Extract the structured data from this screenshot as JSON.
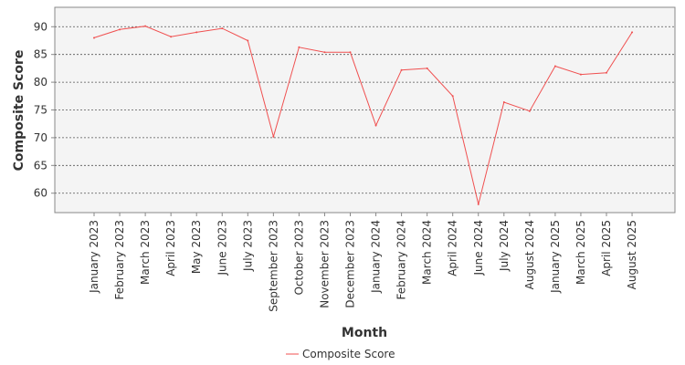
{
  "chart_data": {
    "type": "line",
    "title": "",
    "xlabel": "Month",
    "ylabel": "Composite Score",
    "categories": [
      "January 2023",
      "February 2023",
      "March 2023",
      "April 2023",
      "May 2023",
      "June 2023",
      "July 2023",
      "September 2023",
      "October 2023",
      "November 2023",
      "December 2023",
      "January 2024",
      "February 2024",
      "March 2024",
      "April 2024",
      "June 2024",
      "July 2024",
      "August 2024",
      "January 2025",
      "March 2025",
      "April 2025",
      "August 2025"
    ],
    "series": [
      {
        "name": "Composite Score",
        "color": "#f05050",
        "values": [
          88.0,
          89.5,
          90.1,
          88.2,
          89.0,
          89.7,
          87.5,
          70.2,
          86.3,
          85.4,
          85.4,
          72.2,
          82.2,
          82.5,
          77.5,
          58.0,
          76.4,
          74.8,
          82.9,
          81.4,
          81.7,
          89.0
        ]
      }
    ],
    "ylim": [
      56.5,
      93.5
    ],
    "yticks": [
      60,
      65,
      70,
      75,
      80,
      85,
      90
    ],
    "grid": true,
    "legend": "bottom-center"
  }
}
